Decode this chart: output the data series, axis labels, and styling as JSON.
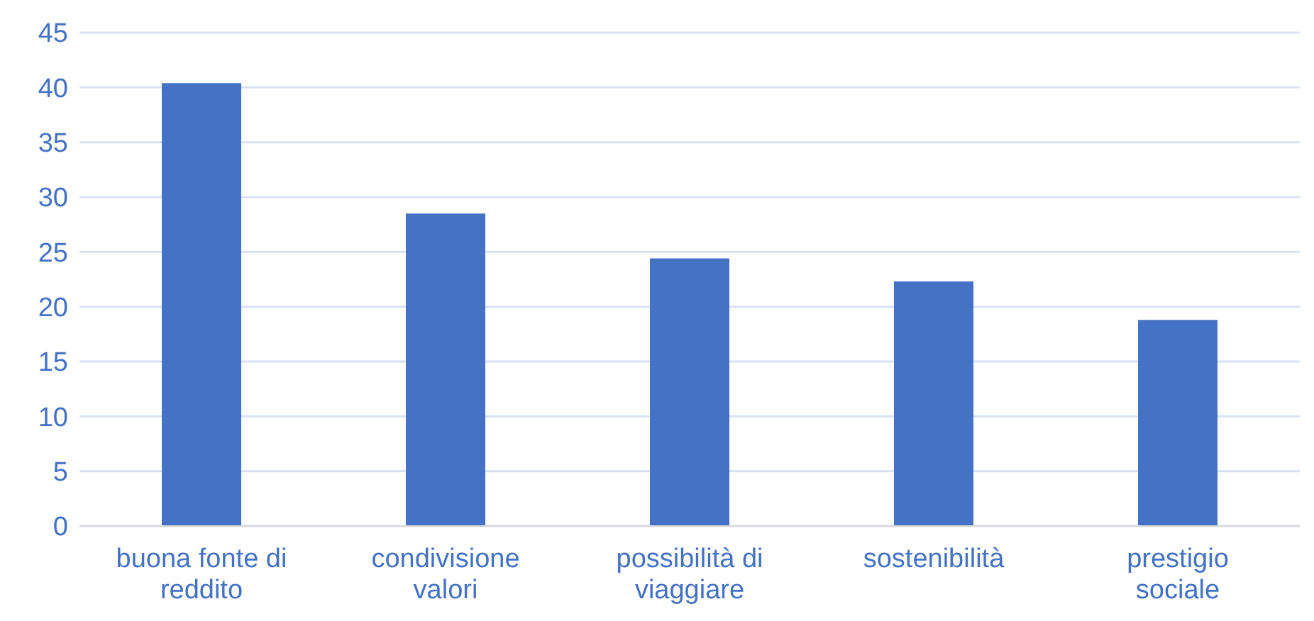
{
  "chart_data": {
    "type": "bar",
    "categories": [
      "buona fonte di reddito",
      "condivisione valori",
      "possibilità di viaggiare",
      "sostenibilità",
      "prestigio sociale"
    ],
    "values": [
      40.4,
      28.5,
      24.4,
      22.3,
      18.8
    ],
    "color": "#4472c4",
    "ylim": [
      0,
      45
    ],
    "yticks": [
      0,
      5,
      10,
      15,
      20,
      25,
      30,
      35,
      40,
      45
    ],
    "grid": "y"
  }
}
